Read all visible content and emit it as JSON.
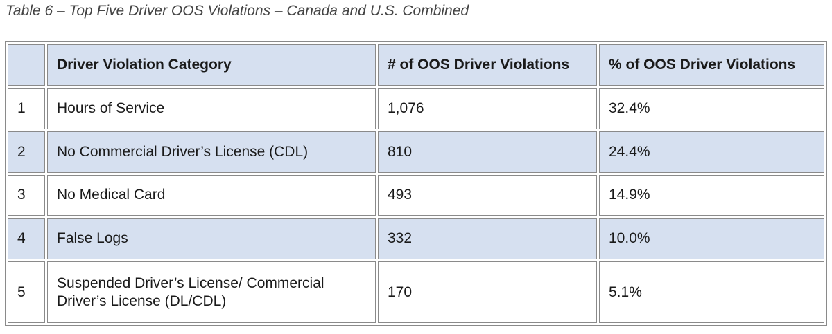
{
  "caption": "Table 6 – Top Five Driver OOS Violations – Canada and U.S. Combined",
  "table": {
    "headers": [
      "",
      "Driver Violation Category",
      "# of OOS Driver Violations",
      "% of OOS Driver Violations"
    ],
    "rows": [
      {
        "rank": "1",
        "category": "Hours of Service",
        "count": "1,076",
        "percent": "32.4%"
      },
      {
        "rank": "2",
        "category": "No Commercial Driver’s License (CDL)",
        "count": "810",
        "percent": "24.4%"
      },
      {
        "rank": "3",
        "category": "No Medical Card",
        "count": "493",
        "percent": "14.9%"
      },
      {
        "rank": "4",
        "category": "False Logs",
        "count": "332",
        "percent": "10.0%"
      },
      {
        "rank": "5",
        "category": "Suspended Driver’s License/ Commercial Driver’s License (DL/CDL)",
        "count": "170",
        "percent": "5.1%"
      }
    ]
  },
  "colors": {
    "header_bg": "#d6e0f0",
    "shaded_row_bg": "#d6e0f0",
    "border": "#8a8a8a"
  }
}
